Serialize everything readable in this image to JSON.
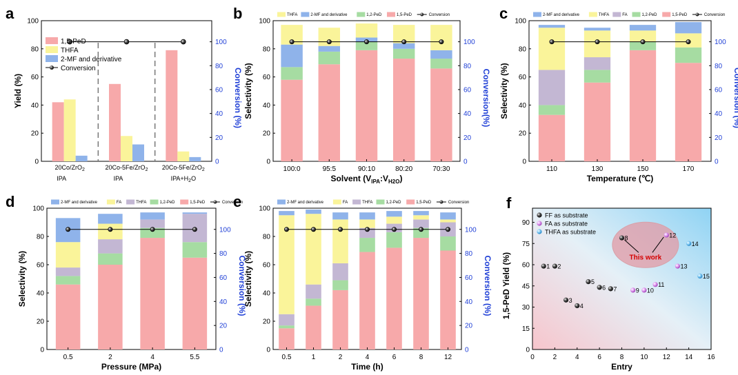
{
  "colors": {
    "pd15": "#f7a9aa",
    "pd12": "#a6dca2",
    "fa": "#faf49a",
    "thfa": "#c3b7d3",
    "mf": "#8fb3ea",
    "thfa_a": "#faf49a",
    "conv": "#000000",
    "right_axis": "#1f3fd6"
  },
  "chart_data": [
    {
      "panel": "a",
      "type": "bar",
      "ylabel": "Yield (%)",
      "y2label": "Conversion (%)",
      "ylim": [
        0,
        100
      ],
      "y2lim": [
        0,
        100
      ],
      "yticks": [
        "0",
        "20",
        "40",
        "60",
        "80",
        "100"
      ],
      "y2ticks": [
        "0",
        "20",
        "40",
        "60",
        "80",
        "100"
      ],
      "categories": [
        {
          "line1": "20Co/ZrO",
          "sub1": "2",
          "line2": "IPA",
          "sub2": ""
        },
        {
          "line1": "20Co-5Fe/ZrO",
          "sub1": "2",
          "line2": "IPA",
          "sub2": ""
        },
        {
          "line1": "20Co-5Fe/ZrO",
          "sub1": "2",
          "line2": "IPA+H",
          "sub2": "2",
          "line2_tail": "O"
        }
      ],
      "series": [
        {
          "name": "1,5-PeD",
          "color_key": "pd15",
          "values": [
            42,
            55,
            79
          ]
        },
        {
          "name": "THFA",
          "color_key": "thfa_a",
          "values": [
            44,
            18,
            7
          ]
        },
        {
          "name": "2-MF and derivative",
          "color_key": "mf",
          "values": [
            4,
            12,
            3
          ]
        }
      ],
      "conversion": {
        "name": "Conversion",
        "values": [
          100,
          100,
          100
        ]
      }
    },
    {
      "panel": "b",
      "type": "stacked-bar",
      "xlabel": "Solvent (V",
      "xlabel_sub1": "IPA",
      "xlabel_mid": ":V",
      "xlabel_sub2": "H2O",
      "xlabel_tail": ")",
      "ylabel": "Selectivity (%)",
      "y2label": "Conversion(%)",
      "ylim": [
        0,
        100
      ],
      "yticks": [
        "0",
        "20",
        "40",
        "60",
        "80",
        "100"
      ],
      "y2ticks": [
        "0",
        "20",
        "40",
        "60",
        "80",
        "100"
      ],
      "categories": [
        "100:0",
        "95:5",
        "90:10",
        "80:20",
        "70:30"
      ],
      "legend": [
        "THFA",
        "2-MF and derivative",
        "1,2-PeD",
        "1,5-PeD",
        "Conversion"
      ],
      "stack": [
        {
          "name": "1,5-PeD",
          "color_key": "pd15",
          "values": [
            58,
            69,
            79,
            73,
            66
          ]
        },
        {
          "name": "1,2-PeD",
          "color_key": "pd12",
          "values": [
            9,
            9,
            6,
            7,
            7
          ]
        },
        {
          "name": "2-MF and derivative",
          "color_key": "mf",
          "values": [
            16,
            4,
            3,
            4,
            6
          ]
        },
        {
          "name": "THFA",
          "color_key": "fa",
          "values": [
            14,
            13,
            10,
            13,
            18
          ]
        }
      ],
      "conversion": [
        100,
        100,
        100,
        100,
        100
      ]
    },
    {
      "panel": "c",
      "type": "stacked-bar",
      "xlabel": "Temperature (℃)",
      "ylabel": "Selectivity (%)",
      "y2label": "Conversion (%)",
      "ylim": [
        0,
        100
      ],
      "yticks": [
        "0",
        "20",
        "40",
        "60",
        "80",
        "100"
      ],
      "y2ticks": [
        "0",
        "20",
        "40",
        "60",
        "80",
        "100"
      ],
      "categories": [
        "110",
        "130",
        "150",
        "170"
      ],
      "legend": [
        "2-MF and derivative",
        "THFA",
        "FA",
        "1,2-PeD",
        "1,5-PeD",
        "Conversion"
      ],
      "stack": [
        {
          "name": "1,5-PeD",
          "color_key": "pd15",
          "values": [
            33,
            56,
            79,
            70
          ]
        },
        {
          "name": "1,2-PeD",
          "color_key": "pd12",
          "values": [
            7,
            9,
            6,
            11
          ]
        },
        {
          "name": "FA",
          "color_key": "thfa",
          "values": [
            25,
            9,
            0,
            0
          ]
        },
        {
          "name": "THFA",
          "color_key": "fa",
          "values": [
            30,
            19,
            8,
            10
          ]
        },
        {
          "name": "2-MF and derivative",
          "color_key": "mf",
          "values": [
            2,
            2,
            4,
            8
          ]
        }
      ],
      "conversion": [
        100,
        100,
        100,
        100
      ]
    },
    {
      "panel": "d",
      "type": "stacked-bar",
      "xlabel": "Pressure (MPa)",
      "ylabel": "Selectivity (%)",
      "y2label": "Conversion (%)",
      "ylim": [
        0,
        100
      ],
      "yticks": [
        "0",
        "20",
        "40",
        "60",
        "80",
        "100"
      ],
      "y2ticks": [
        "0",
        "20",
        "40",
        "60",
        "80",
        "100"
      ],
      "categories": [
        "0.5",
        "2",
        "4",
        "5.5"
      ],
      "legend": [
        "2-MF and derivative",
        "FA",
        "THFA",
        "1,2-PeD",
        "1,5-PeD",
        "Conversion"
      ],
      "stack": [
        {
          "name": "1,5-PeD",
          "color_key": "pd15",
          "values": [
            46,
            60,
            79,
            65
          ]
        },
        {
          "name": "1,2-PeD",
          "color_key": "pd12",
          "values": [
            6,
            8,
            7,
            11
          ]
        },
        {
          "name": "THFA",
          "color_key": "thfa",
          "values": [
            6,
            10,
            6,
            20
          ]
        },
        {
          "name": "FA",
          "color_key": "fa",
          "values": [
            18,
            11,
            0,
            0
          ]
        },
        {
          "name": "2-MF and derivative",
          "color_key": "mf",
          "values": [
            17,
            7,
            5,
            1
          ]
        }
      ],
      "conversion": [
        100,
        100,
        100,
        100
      ]
    },
    {
      "panel": "e",
      "type": "stacked-bar",
      "xlabel": "Time (h)",
      "ylabel": "Selectivity (%)",
      "y2label": "Conversion (%)",
      "ylim": [
        0,
        100
      ],
      "yticks": [
        "0",
        "20",
        "40",
        "60",
        "80",
        "100"
      ],
      "y2ticks": [
        "0",
        "20",
        "40",
        "60",
        "80",
        "100"
      ],
      "categories": [
        "0.5",
        "1",
        "2",
        "4",
        "6",
        "8",
        "12"
      ],
      "legend": [
        "2-MF and derivative",
        "FA",
        "THFA",
        "1,2-PeD",
        "1,5-PeD",
        "Conversion"
      ],
      "stack": [
        {
          "name": "1,5-PeD",
          "color_key": "pd15",
          "values": [
            15,
            31,
            42,
            69,
            72,
            79,
            70
          ]
        },
        {
          "name": "1,2-PeD",
          "color_key": "pd12",
          "values": [
            2,
            5,
            7,
            10,
            11,
            7,
            10
          ]
        },
        {
          "name": "THFA",
          "color_key": "thfa",
          "values": [
            8,
            10,
            12,
            7,
            6,
            6,
            10
          ]
        },
        {
          "name": "FA",
          "color_key": "fa",
          "values": [
            70,
            50,
            31,
            6,
            5,
            3,
            2
          ]
        },
        {
          "name": "2-MF and derivative",
          "color_key": "mf",
          "values": [
            3,
            3,
            5,
            5,
            4,
            3,
            5
          ]
        }
      ],
      "conversion": [
        100,
        100,
        100,
        100,
        100,
        100,
        100
      ]
    },
    {
      "panel": "f",
      "type": "scatter",
      "xlabel": "Entry",
      "ylabel": "1,5-PeD Yield (%)",
      "xlim": [
        0,
        16
      ],
      "ylim": [
        0,
        100
      ],
      "xticks": [
        "0",
        "2",
        "4",
        "6",
        "8",
        "10",
        "12",
        "14",
        "16"
      ],
      "yticks": [
        "0",
        "15",
        "30",
        "45",
        "60",
        "75",
        "90"
      ],
      "series": [
        {
          "name": "FF as substrate",
          "color": "#111111",
          "points": [
            {
              "x": 1,
              "y": 59,
              "label": "1"
            },
            {
              "x": 2,
              "y": 59,
              "label": "2"
            },
            {
              "x": 3,
              "y": 35,
              "label": "3"
            },
            {
              "x": 4,
              "y": 31,
              "label": "4"
            },
            {
              "x": 5,
              "y": 48,
              "label": "5"
            },
            {
              "x": 6,
              "y": 44,
              "label": "6"
            },
            {
              "x": 7,
              "y": 43,
              "label": "7"
            },
            {
              "x": 8,
              "y": 79,
              "label": "8"
            }
          ]
        },
        {
          "name": "FA as substrate",
          "color": "#c86ee0",
          "points": [
            {
              "x": 9,
              "y": 42,
              "label": "9"
            },
            {
              "x": 10,
              "y": 42,
              "label": "10"
            },
            {
              "x": 11,
              "y": 46,
              "label": "11"
            },
            {
              "x": 12,
              "y": 81,
              "label": "12"
            },
            {
              "x": 13,
              "y": 59,
              "label": "13"
            }
          ]
        },
        {
          "name": "THFA as substrate",
          "color": "#3aa6e6",
          "points": [
            {
              "x": 14,
              "y": 75,
              "label": "14"
            },
            {
              "x": 15,
              "y": 52,
              "label": "15"
            }
          ]
        }
      ],
      "annotation": "This work"
    }
  ]
}
